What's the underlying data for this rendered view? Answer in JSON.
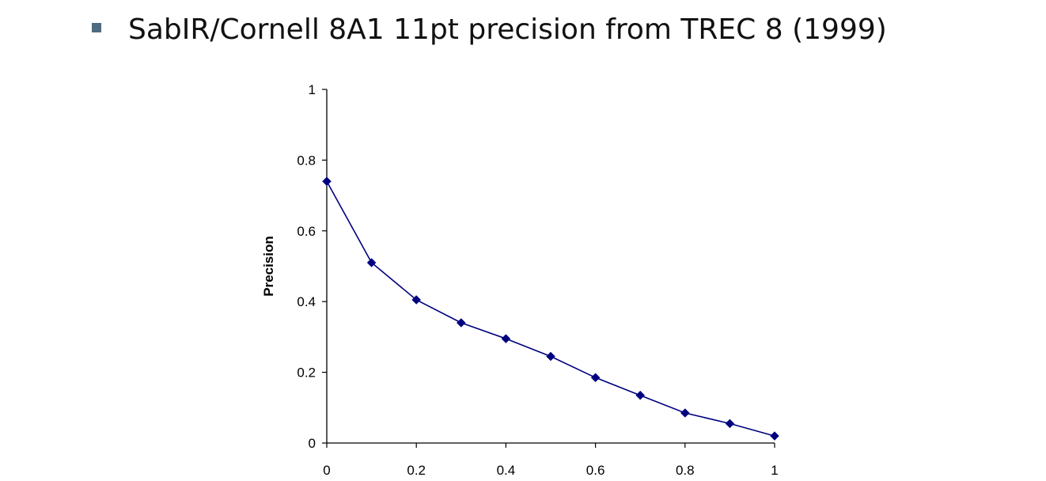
{
  "slide": {
    "title": "SabIR/Cornell 8A1 11pt precision from TREC 8 (1999)"
  },
  "colors": {
    "bullet": "#4f6b80",
    "series": "#000080",
    "axis": "#000000"
  },
  "chart_data": {
    "type": "line",
    "title": "",
    "xlabel": "",
    "ylabel": "Precision",
    "xlim": [
      0,
      1
    ],
    "ylim": [
      0,
      1
    ],
    "x_ticks": [
      "0",
      "0.2",
      "0.4",
      "0.6",
      "0.8",
      "1"
    ],
    "y_ticks": [
      "0",
      "0.2",
      "0.4",
      "0.6",
      "0.8",
      "1"
    ],
    "grid": false,
    "marker": "diamond",
    "series": [
      {
        "x": [
          0,
          0.1,
          0.2,
          0.3,
          0.4,
          0.5,
          0.6,
          0.7,
          0.8,
          0.9,
          1.0
        ],
        "values": [
          0.74,
          0.51,
          0.405,
          0.34,
          0.295,
          0.245,
          0.185,
          0.135,
          0.085,
          0.055,
          0.02
        ]
      }
    ]
  }
}
